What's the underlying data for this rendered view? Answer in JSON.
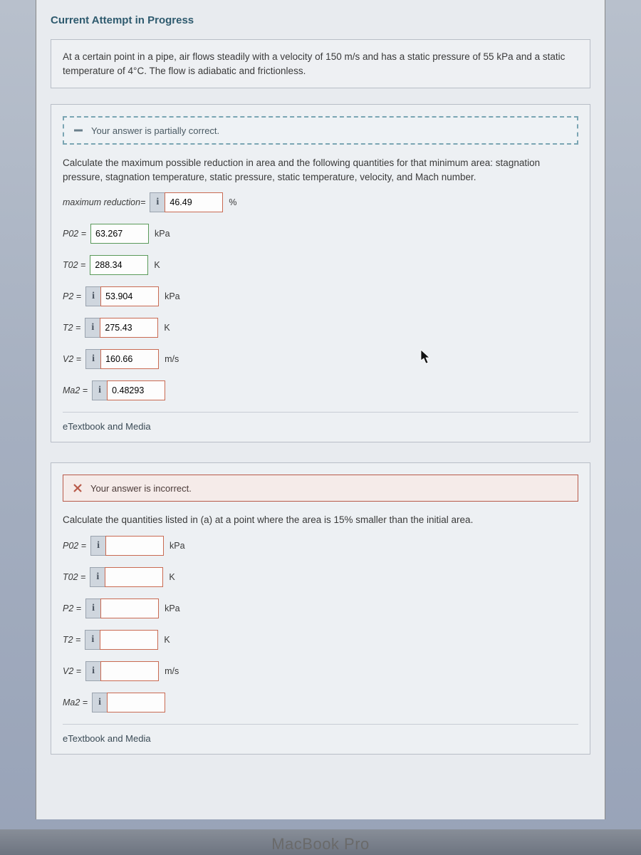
{
  "header": {
    "attempt_title": "Current Attempt in Progress"
  },
  "problem": {
    "text": "At a certain point in a pipe, air flows steadily with a velocity of 150 m/s and has a static pressure of 55 kPa and a static temperature of 4°C. The flow is adiabatic and frictionless."
  },
  "part_a": {
    "feedback": {
      "icon": "minus",
      "text": "Your answer is partially correct."
    },
    "prompt": "Calculate the maximum possible reduction in area and the following quantities for that minimum area: stagnation pressure, stagnation temperature, static pressure, static temperature, velocity, and Mach number.",
    "fields": [
      {
        "label": "maximum reduction=",
        "has_info": true,
        "value": "46.49",
        "unit": "%",
        "status": "wrong"
      },
      {
        "label": "P02 =",
        "has_info": false,
        "value": "63.267",
        "unit": "kPa",
        "status": "correct"
      },
      {
        "label": "T02 =",
        "has_info": false,
        "value": "288.34",
        "unit": "K",
        "status": "correct"
      },
      {
        "label": "P2 =",
        "has_info": true,
        "value": "53.904",
        "unit": "kPa",
        "status": "wrong"
      },
      {
        "label": "T2 =",
        "has_info": true,
        "value": "275.43",
        "unit": "K",
        "status": "wrong"
      },
      {
        "label": "V2 =",
        "has_info": true,
        "value": "160.66",
        "unit": "m/s",
        "status": "wrong"
      },
      {
        "label": "Ma2 =",
        "has_info": true,
        "value": "0.48293",
        "unit": "",
        "status": "wrong"
      }
    ],
    "etext": "eTextbook and Media"
  },
  "part_b": {
    "feedback": {
      "icon": "x",
      "text": "Your answer is incorrect."
    },
    "prompt": "Calculate the quantities listed in (a) at a point where the area is 15% smaller than the initial area.",
    "fields": [
      {
        "label": "P02 =",
        "has_info": true,
        "value": "",
        "unit": "kPa",
        "status": "wrong"
      },
      {
        "label": "T02 =",
        "has_info": true,
        "value": "",
        "unit": "K",
        "status": "wrong"
      },
      {
        "label": "P2 =",
        "has_info": true,
        "value": "",
        "unit": "kPa",
        "status": "wrong"
      },
      {
        "label": "T2 =",
        "has_info": true,
        "value": "",
        "unit": "K",
        "status": "wrong"
      },
      {
        "label": "V2 =",
        "has_info": true,
        "value": "",
        "unit": "m/s",
        "status": "wrong"
      },
      {
        "label": "Ma2 =",
        "has_info": true,
        "value": "",
        "unit": "",
        "status": "wrong"
      }
    ],
    "etext": "eTextbook and Media"
  },
  "footer": {
    "laptop": "MacBook Pro"
  },
  "info_glyph": "i",
  "colors": {
    "partial_border": "#7aa5b3",
    "incorrect_border": "#b85a4a",
    "correct_input_border": "#5a9a5a",
    "wrong_input_border": "#c96a52"
  }
}
